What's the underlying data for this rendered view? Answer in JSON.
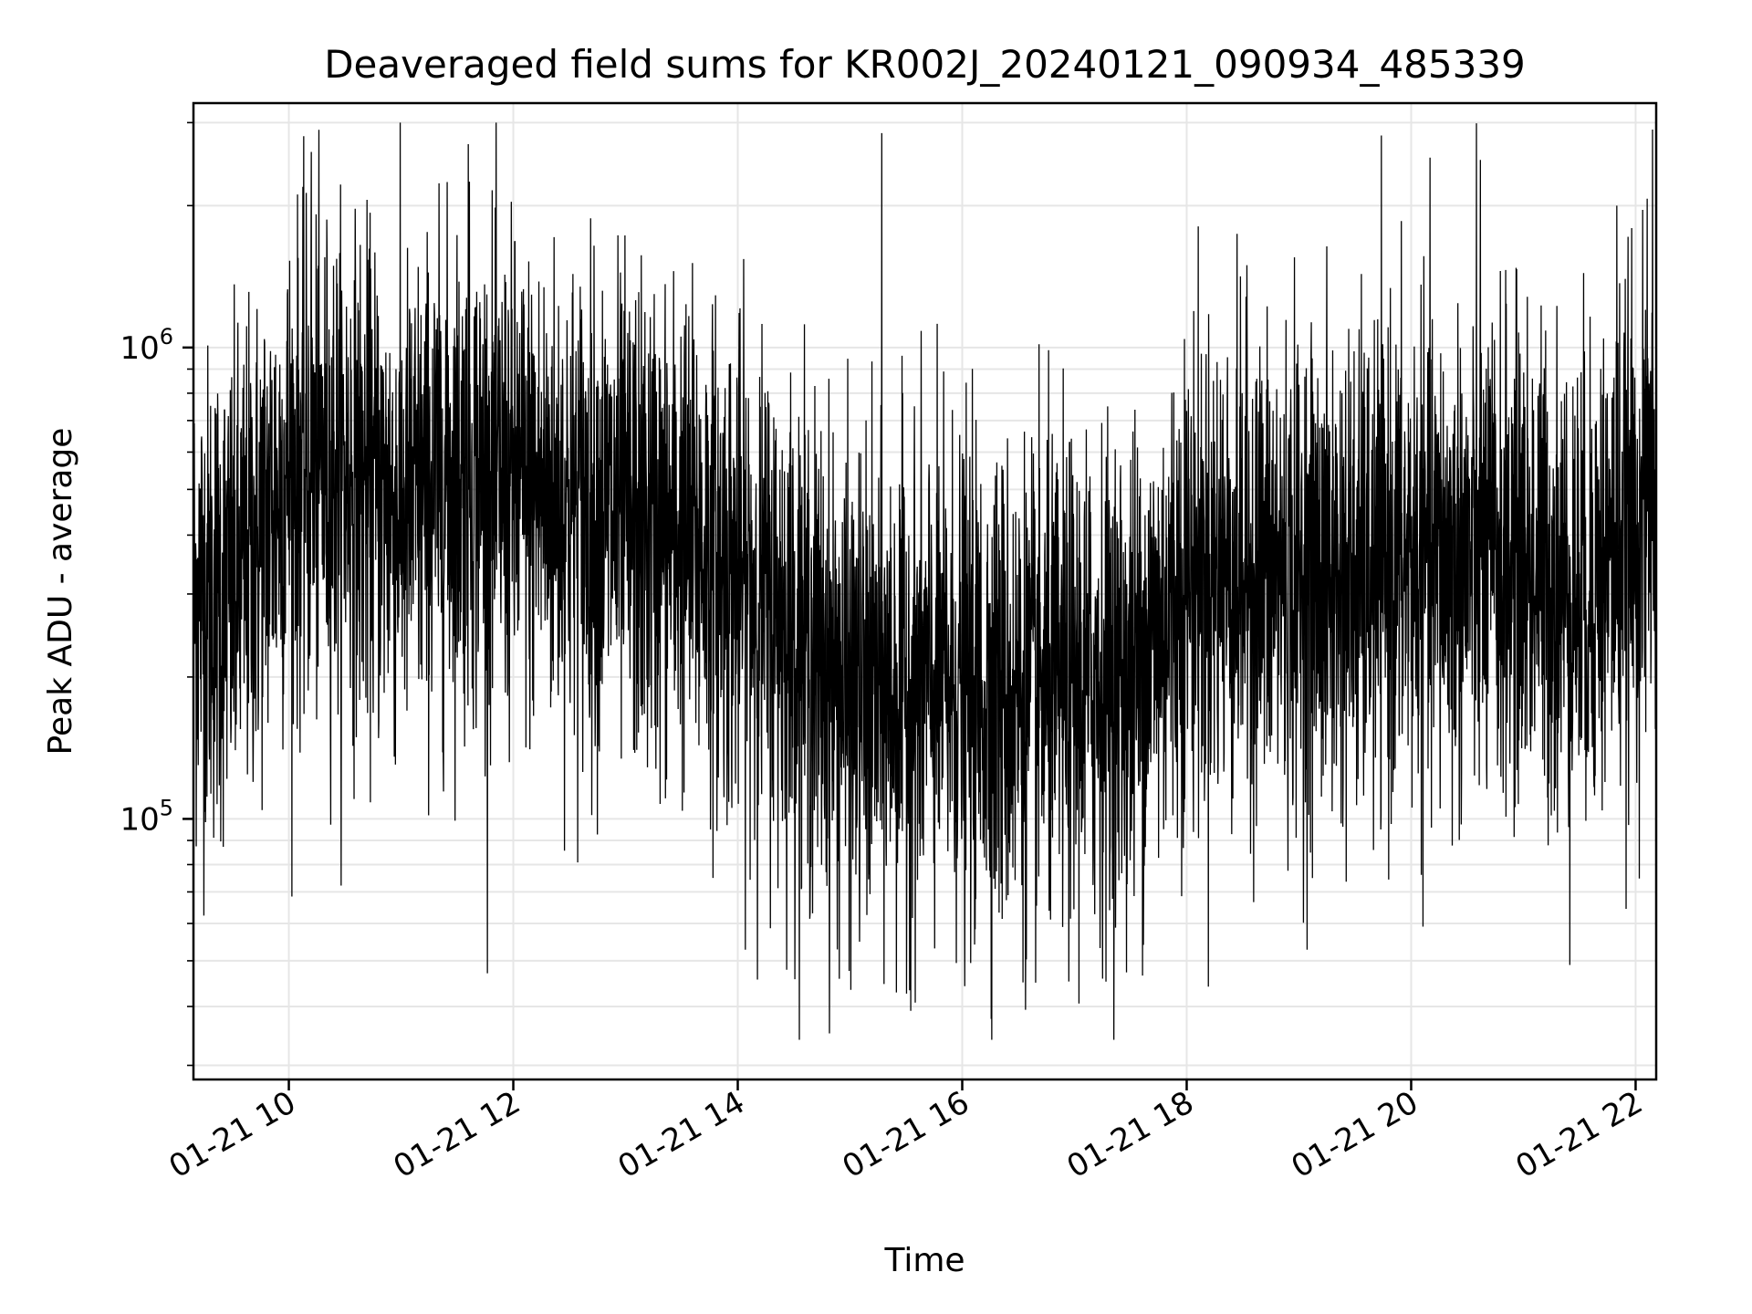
{
  "chart_data": {
    "type": "line",
    "title": "Deaveraged field sums for KR002J_20240121_090934_485339",
    "xlabel": "Time",
    "ylabel": "Peak ADU - average",
    "x_scale": "time",
    "y_scale": "log",
    "xlim": [
      "01-21 09:09",
      "01-21 22:11"
    ],
    "ylim": [
      28000,
      3300000
    ],
    "x_ticks": [
      "01-21 10",
      "01-21 12",
      "01-21 14",
      "01-21 16",
      "01-21 18",
      "01-21 20",
      "01-21 22"
    ],
    "y_ticks": [
      {
        "base": "10",
        "exp": "5",
        "value": 100000
      },
      {
        "base": "10",
        "exp": "6",
        "value": 1000000
      }
    ],
    "grid": true,
    "legend": "none",
    "line_color": "#000000",
    "grid_color": "#e6e6e6",
    "series": [
      {
        "x": [
          "01-21 09:10",
          "01-21 09:30",
          "01-21 10:00",
          "01-21 10:30",
          "01-21 11:00",
          "01-21 11:30",
          "01-21 12:00",
          "01-21 12:30",
          "01-21 13:00",
          "01-21 13:30",
          "01-21 14:00",
          "01-21 14:30",
          "01-21 15:00",
          "01-21 15:30",
          "01-21 16:00",
          "01-21 16:30",
          "01-21 17:00",
          "01-21 17:30",
          "01-21 18:00",
          "01-21 18:30",
          "01-21 19:00",
          "01-21 19:30",
          "01-21 20:00",
          "01-21 20:30",
          "01-21 21:00",
          "01-21 21:30",
          "01-21 22:00",
          "01-21 22:10"
        ],
        "y": [
          300000,
          300000,
          550000,
          550000,
          450000,
          550000,
          500000,
          470000,
          420000,
          400000,
          330000,
          250000,
          180000,
          190000,
          190000,
          180000,
          190000,
          200000,
          330000,
          340000,
          320000,
          320000,
          350000,
          350000,
          350000,
          300000,
          420000,
          500000
        ]
      }
    ],
    "spikes": [
      {
        "x": "01-21 10:12",
        "y": 2600000
      },
      {
        "x": "01-21 11:36",
        "y": 2700000
      },
      {
        "x": "01-21 15:17",
        "y": 2850000
      },
      {
        "x": "01-21 20:37",
        "y": 2500000
      },
      {
        "x": "01-21 21:50",
        "y": 2000000
      },
      {
        "x": "01-21 22:09",
        "y": 2900000
      }
    ]
  }
}
